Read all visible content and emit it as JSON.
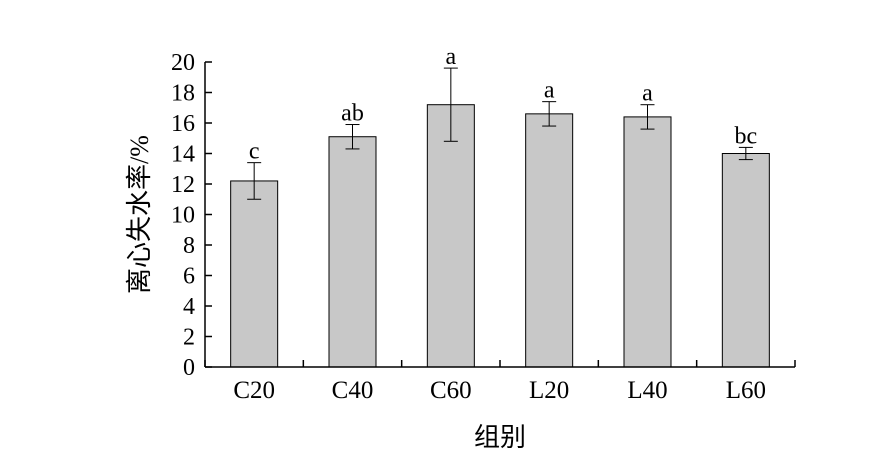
{
  "chart_data": {
    "type": "bar",
    "xlabel": "组别",
    "ylabel": "离心失水率/%",
    "ylim": [
      0,
      20
    ],
    "yticks": [
      "0",
      "2",
      "4",
      "6",
      "8",
      "10",
      "12",
      "14",
      "16",
      "18",
      "20"
    ],
    "grid": false,
    "legend": "none",
    "bar_color": "#c8c8c8",
    "categories": [
      "C20",
      "C40",
      "C60",
      "L20",
      "L40",
      "L60"
    ],
    "values": [
      12.2,
      15.1,
      17.2,
      16.6,
      16.4,
      14.0
    ],
    "errors": [
      1.2,
      0.8,
      2.4,
      0.8,
      0.8,
      0.4
    ],
    "significance": [
      "c",
      "ab",
      "a",
      "a",
      "a",
      "bc"
    ]
  }
}
